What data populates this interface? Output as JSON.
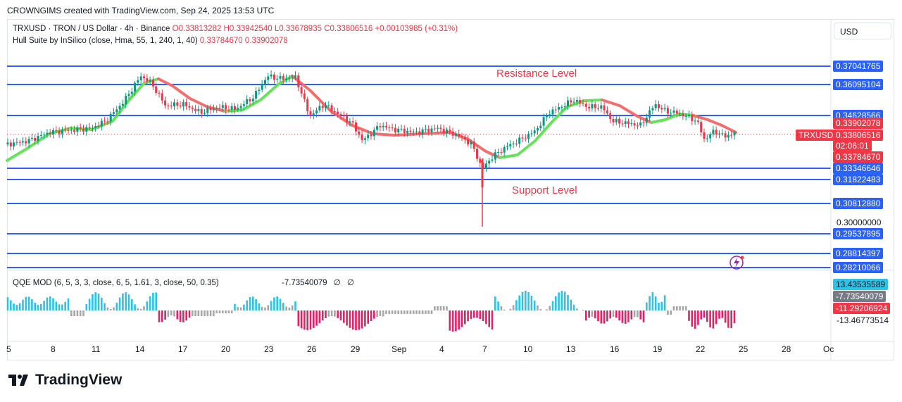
{
  "header": {
    "text": "CROWNGIMS created with TradingView.com, Sep 24, 2025 13:53 UTC"
  },
  "legend": {
    "symbol": "TRXUSD · TRON / US Dollar · 4h · Binance",
    "open": "O0.33813282",
    "high": "H0.33942540",
    "low": "L0.33678935",
    "close": "C0.33806516",
    "change": "+0.00103985 (+0.31%)",
    "indicator": "Hull Suite by InSilico (close, Hma, 55, 1, 240, 1, 40)",
    "ind_val1": "0.33784670",
    "ind_val2": "0.33902078"
  },
  "qqe": {
    "label": "QQE MOD (6, 5, 3, 3, close, 6, 5, 1.61, 3, close, 50, 0.35)",
    "value": "-7.73540079",
    "empty1": "∅",
    "empty2": "∅"
  },
  "currency_button": "USD",
  "annotations": {
    "resistance": "Resistance Level",
    "support": "Support Level"
  },
  "price_axis": {
    "levels": [
      "0.37041765",
      "0.36095104",
      "0.34628566",
      "0.33346646",
      "0.31822483",
      "0.30812880",
      "0.29537895",
      "0.28814397",
      "0.28210066"
    ],
    "ticks": [
      "0.30000000"
    ],
    "symbol_tag": "TRXUSD",
    "price_tag": "0.33806516",
    "countdown": "02:06:01",
    "hull_upper": "0.33902078",
    "hull_lower": "0.33784670"
  },
  "qqe_axis": {
    "tag1": "13.43535589",
    "tag2": "-7.73540079",
    "tag3": "-11.29206924",
    "plain": "-13.46773514"
  },
  "time_axis": [
    "5",
    "8",
    "11",
    "14",
    "17",
    "20",
    "23",
    "26",
    "29",
    "Sep",
    "4",
    "7",
    "10",
    "13",
    "16",
    "19",
    "22",
    "25",
    "28",
    "Oc"
  ],
  "colors": {
    "up": "#089981",
    "down": "#f23645",
    "hull_up": "#66e35a",
    "hull_down": "#f36e6e",
    "level_line": "#2962ff",
    "qqe_blue": "#2bc3e6",
    "qqe_pink": "#e91e63",
    "qqe_gray": "#a6a6a6"
  },
  "brand": "TradingView"
}
